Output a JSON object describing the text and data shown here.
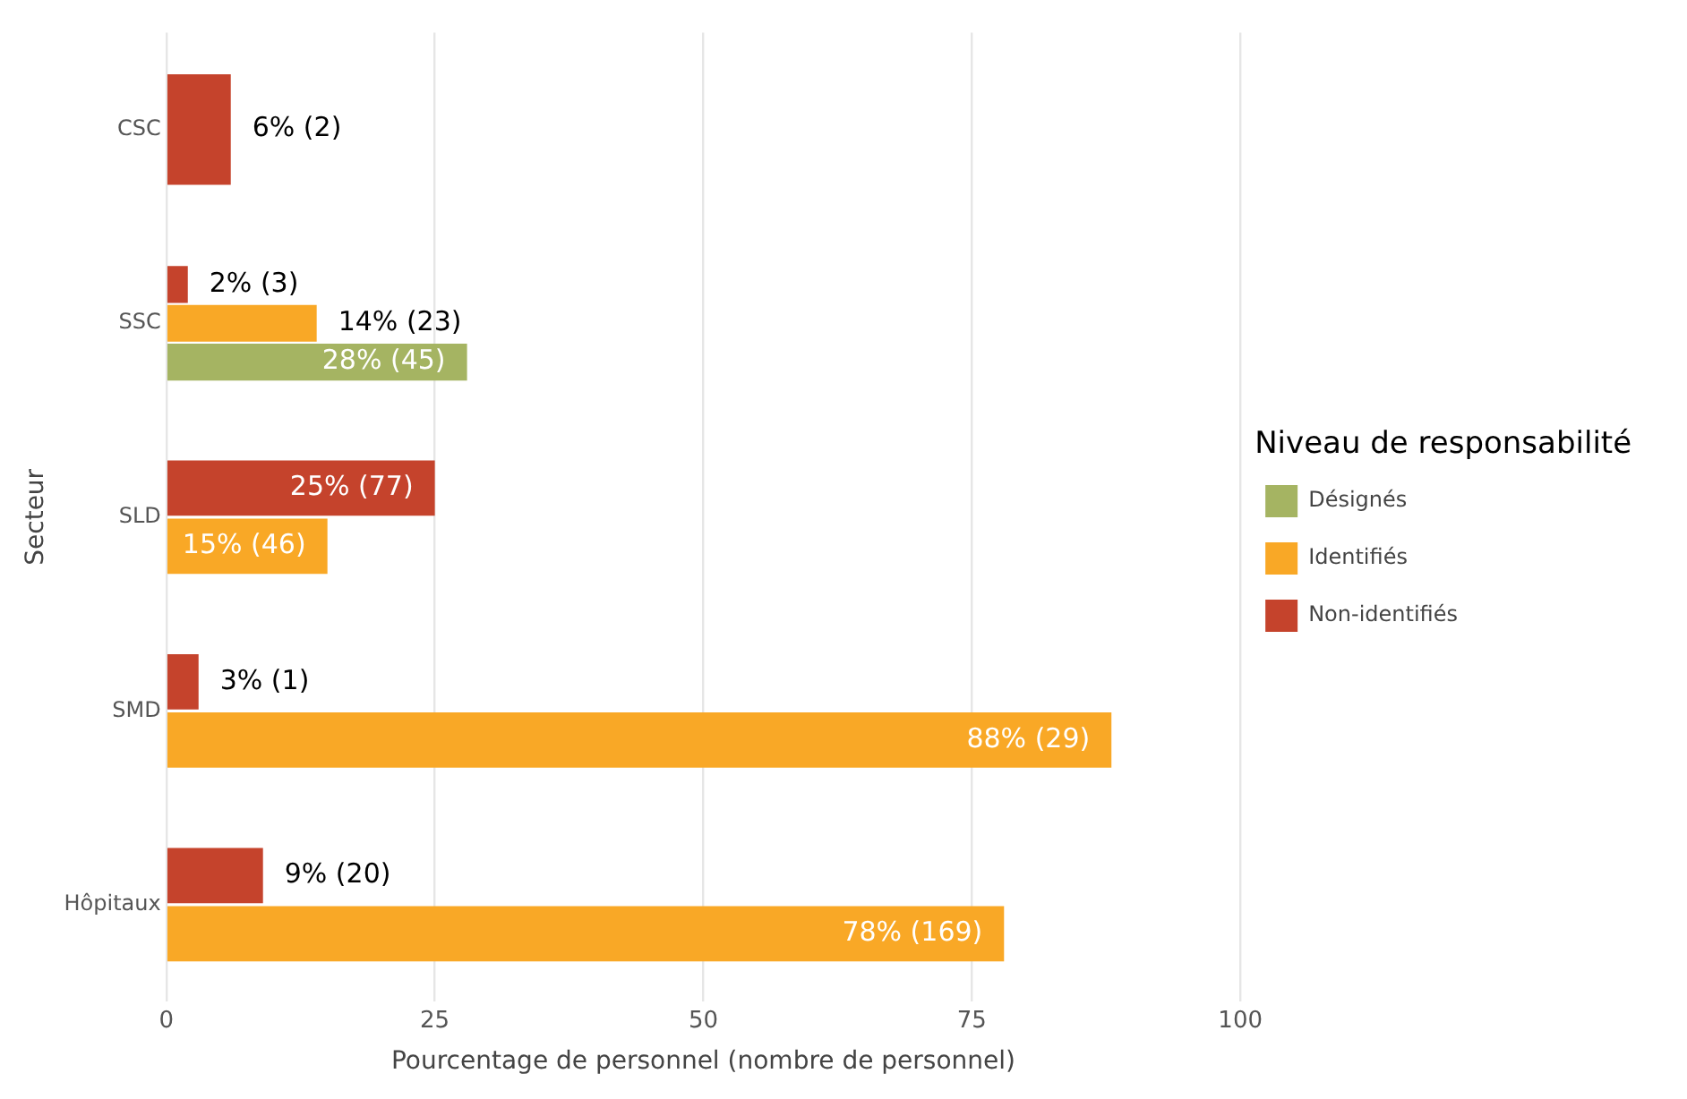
{
  "chart_data": {
    "type": "bar",
    "orientation": "horizontal",
    "xlabel": "Pourcentage de personnel (nombre de personnel)",
    "ylabel": "Secteur",
    "legend_title": "Niveau de responsabilité",
    "categories": [
      "CSC",
      "SSC",
      "SLD",
      "SMD",
      "Hôpitaux"
    ],
    "series": [
      {
        "name": "Non-identifiés",
        "color": "#c5432c",
        "values": [
          6,
          2,
          25,
          3,
          9
        ],
        "value_labels": [
          "6% (2)",
          "2% (3)",
          "25% (77)",
          "3% (1)",
          "9% (20)"
        ]
      },
      {
        "name": "Identifiés",
        "color": "#f9a826",
        "values": [
          null,
          14,
          15,
          88,
          78
        ],
        "value_labels": [
          null,
          "14% (23)",
          "15% (46)",
          "88% (29)",
          "78% (169)"
        ]
      },
      {
        "name": "Désignés",
        "color": "#a5b462",
        "values": [
          null,
          28,
          null,
          null,
          null
        ],
        "value_labels": [
          null,
          "28% (45)",
          null,
          null,
          null
        ]
      }
    ],
    "xlim": [
      0,
      100
    ],
    "xticks": [
      0,
      25,
      50,
      75,
      100
    ],
    "grid": "x",
    "legend": "right"
  }
}
